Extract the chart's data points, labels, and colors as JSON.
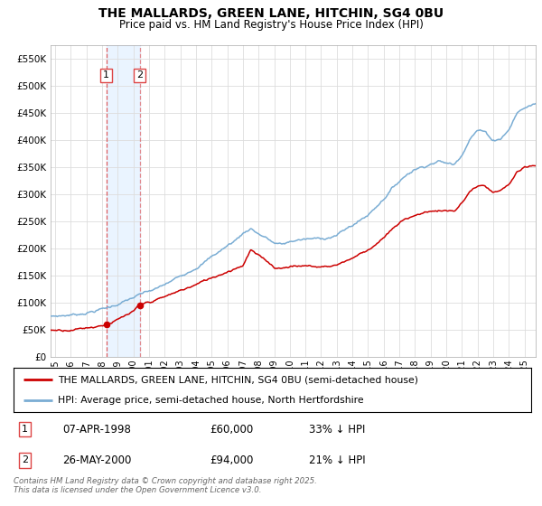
{
  "title": "THE MALLARDS, GREEN LANE, HITCHIN, SG4 0BU",
  "subtitle": "Price paid vs. HM Land Registry's House Price Index (HPI)",
  "ylabel_ticks": [
    "£0",
    "£50K",
    "£100K",
    "£150K",
    "£200K",
    "£250K",
    "£300K",
    "£350K",
    "£400K",
    "£450K",
    "£500K",
    "£550K"
  ],
  "ytick_values": [
    0,
    50000,
    100000,
    150000,
    200000,
    250000,
    300000,
    350000,
    400000,
    450000,
    500000,
    550000
  ],
  "ylim": [
    0,
    575000
  ],
  "xlim_start": 1994.7,
  "xlim_end": 2025.7,
  "sale1_date": 1998.27,
  "sale1_price": 60000,
  "sale1_label": "1",
  "sale1_text": "07-APR-1998",
  "sale1_price_text": "£60,000",
  "sale1_hpi_text": "33% ↓ HPI",
  "sale2_date": 2000.4,
  "sale2_price": 94000,
  "sale2_label": "2",
  "sale2_text": "26-MAY-2000",
  "sale2_price_text": "£94,000",
  "sale2_hpi_text": "21% ↓ HPI",
  "line_color_red": "#cc0000",
  "line_color_blue": "#7aadd4",
  "vline_color": "#dd4444",
  "vline2_color": "#bb99cc",
  "bg_fill_color": "#ddeeff",
  "legend_label_red": "THE MALLARDS, GREEN LANE, HITCHIN, SG4 0BU (semi-detached house)",
  "legend_label_blue": "HPI: Average price, semi-detached house, North Hertfordshire",
  "footer": "Contains HM Land Registry data © Crown copyright and database right 2025.\nThis data is licensed under the Open Government Licence v3.0.",
  "xtick_years": [
    1995,
    1996,
    1997,
    1998,
    1999,
    2000,
    2001,
    2002,
    2003,
    2004,
    2005,
    2006,
    2007,
    2008,
    2009,
    2010,
    2011,
    2012,
    2013,
    2014,
    2015,
    2016,
    2017,
    2018,
    2019,
    2020,
    2021,
    2022,
    2023,
    2024,
    2025
  ],
  "hpi_key_years": [
    1994.7,
    1995.5,
    1996.5,
    1997.5,
    1998.5,
    1999.5,
    2000.5,
    2001.5,
    2002.5,
    2003.5,
    2004.5,
    2005.5,
    2006.5,
    2007.0,
    2007.5,
    2008.0,
    2008.5,
    2009.0,
    2009.5,
    2010.0,
    2010.5,
    2011.0,
    2012.0,
    2013.0,
    2014.0,
    2015.0,
    2016.0,
    2016.5,
    2017.0,
    2017.5,
    2018.0,
    2018.5,
    2019.0,
    2019.5,
    2020.0,
    2020.5,
    2021.0,
    2021.5,
    2022.0,
    2022.5,
    2023.0,
    2023.5,
    2024.0,
    2024.5,
    2025.0,
    2025.7
  ],
  "hpi_key_values": [
    74000,
    76000,
    79000,
    85000,
    92000,
    103000,
    115000,
    125000,
    140000,
    158000,
    175000,
    195000,
    215000,
    228000,
    238000,
    228000,
    220000,
    210000,
    207000,
    212000,
    216000,
    217000,
    218000,
    225000,
    243000,
    262000,
    293000,
    310000,
    325000,
    338000,
    348000,
    352000,
    358000,
    362000,
    358000,
    355000,
    375000,
    405000,
    420000,
    415000,
    400000,
    405000,
    420000,
    450000,
    460000,
    468000
  ],
  "red_key_years": [
    1994.7,
    1995.5,
    1996.5,
    1997.5,
    1998.27,
    1999.0,
    2000.0,
    2000.4,
    2001.0,
    2002.0,
    2003.0,
    2004.0,
    2005.0,
    2006.0,
    2007.0,
    2007.5,
    2008.0,
    2008.5,
    2009.0,
    2009.5,
    2010.0,
    2011.0,
    2012.0,
    2013.0,
    2014.0,
    2015.0,
    2016.0,
    2016.5,
    2017.0,
    2017.5,
    2018.0,
    2018.5,
    2019.0,
    2020.0,
    2020.5,
    2021.0,
    2021.5,
    2022.0,
    2022.5,
    2023.0,
    2023.5,
    2024.0,
    2024.5,
    2025.0,
    2025.7
  ],
  "red_key_values": [
    49000,
    50000,
    52000,
    56000,
    60000,
    68000,
    82000,
    94000,
    100000,
    110000,
    122000,
    133000,
    146000,
    158000,
    170000,
    198000,
    186000,
    178000,
    166000,
    164000,
    168000,
    168000,
    166000,
    170000,
    183000,
    198000,
    220000,
    233000,
    246000,
    255000,
    263000,
    265000,
    270000,
    270000,
    268000,
    283000,
    305000,
    315000,
    313000,
    302000,
    305000,
    317000,
    340000,
    347000,
    352000
  ]
}
